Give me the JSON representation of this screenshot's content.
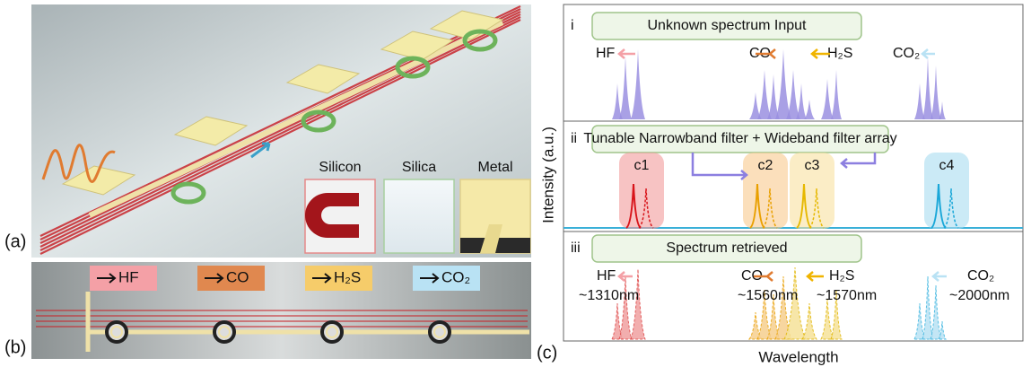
{
  "panel_a": {
    "label": "(a)",
    "materials": [
      "Silicon",
      "Silica",
      "Metal"
    ]
  },
  "panel_b": {
    "label": "(b)",
    "gases": [
      "HF",
      "CO",
      "H₂S",
      "CO₂"
    ]
  },
  "panel_c": {
    "label": "(c)",
    "y_axis": "Intensity (a.u.)",
    "x_axis": "Wavelength",
    "rows": [
      {
        "numeral": "i",
        "title": "Unknown spectrum Input",
        "labels": [
          "HF",
          "CO",
          "H₂S",
          "CO₂"
        ]
      },
      {
        "numeral": "ii",
        "title": "Tunable Narrowband filter + Wideband filter array",
        "labels": [
          "c1",
          "c2",
          "c3",
          "c4"
        ]
      },
      {
        "numeral": "iii",
        "title": "Spectrum retrieved",
        "labels": [
          {
            "gas": "HF",
            "wavelength": "~1310nm"
          },
          {
            "gas": "CO",
            "wavelength": "~1560nm"
          },
          {
            "gas": "H₂S",
            "wavelength": "~1570nm"
          },
          {
            "gas": "CO₂",
            "wavelength": "~2000nm"
          }
        ]
      }
    ]
  }
}
